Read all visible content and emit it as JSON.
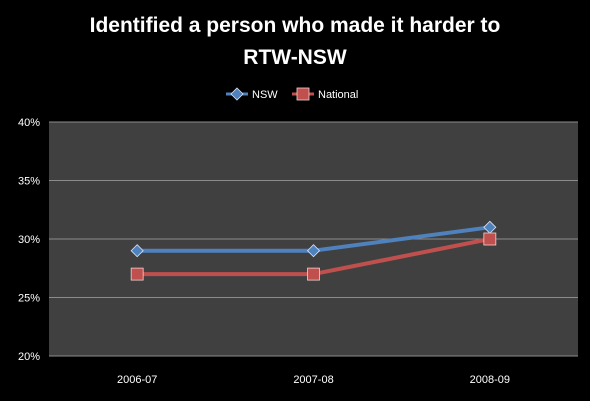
{
  "chart_data": {
    "type": "line",
    "title_lines": [
      "Identified a person who made it harder to",
      "RTW-NSW"
    ],
    "categories": [
      "2006-07",
      "2007-08",
      "2008-09"
    ],
    "series": [
      {
        "name": "NSW",
        "values": [
          29,
          29,
          31
        ],
        "color": "#4f81bd",
        "marker": "diamond"
      },
      {
        "name": "National",
        "values": [
          27,
          27,
          30
        ],
        "color": "#c0504d",
        "marker": "square"
      }
    ],
    "y_ticks": [
      "20%",
      "25%",
      "30%",
      "35%",
      "40%"
    ],
    "ylim": [
      20,
      40
    ],
    "y_unit": "%",
    "grid": true,
    "legend_position": "top",
    "plot_background": "#404040"
  }
}
